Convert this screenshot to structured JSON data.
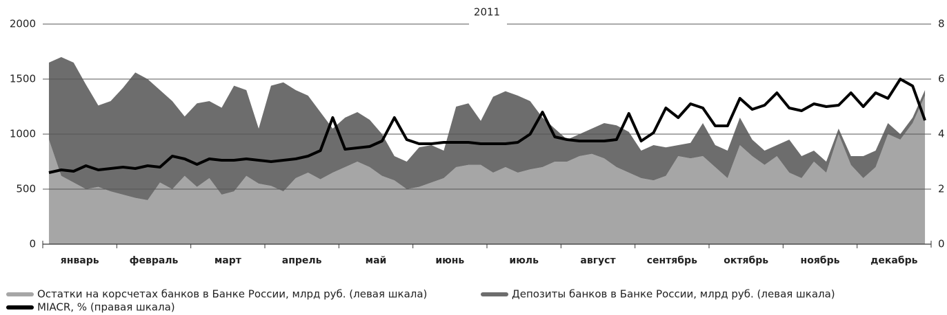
{
  "chart_data": {
    "type": "stacked_area_line",
    "title": "2011",
    "categories": [
      "январь",
      null,
      null,
      null,
      null,
      null,
      "февраль",
      null,
      null,
      null,
      null,
      null,
      "март",
      null,
      null,
      null,
      null,
      null,
      "апрель",
      null,
      null,
      null,
      null,
      null,
      "май",
      null,
      null,
      null,
      null,
      null,
      "июнь",
      null,
      null,
      null,
      null,
      null,
      "июль",
      null,
      null,
      null,
      null,
      null,
      "август",
      null,
      null,
      null,
      null,
      null,
      "сентябрь",
      null,
      null,
      null,
      null,
      null,
      "октябрь",
      null,
      null,
      null,
      null,
      null,
      "ноябрь",
      null,
      null,
      null,
      null,
      null,
      "декабрь",
      null,
      null,
      null,
      null,
      null
    ],
    "series": [
      {
        "name": "Остатки на корсчетах банков в Банке России, млрд руб. (левая шкала)",
        "color": "#a6a6a6",
        "type": "area",
        "values": [
          950,
          620,
          560,
          500,
          520,
          480,
          450,
          420,
          400,
          560,
          500,
          620,
          520,
          600,
          450,
          480,
          620,
          550,
          530,
          480,
          600,
          650,
          590,
          650,
          700,
          750,
          700,
          620,
          580,
          500,
          520,
          560,
          600,
          700,
          720,
          720,
          650,
          700,
          650,
          680,
          700,
          750,
          750,
          800,
          820,
          780,
          700,
          650,
          600,
          580,
          620,
          800,
          780,
          800,
          700,
          600,
          900,
          800,
          720,
          800,
          650,
          600,
          750,
          650,
          1000,
          720,
          600,
          700,
          1000,
          950,
          1100,
          1350
        ]
      },
      {
        "name": "Депозиты банков в Банке России, млрд руб. (левая шкала)",
        "color": "#6d6d6d",
        "type": "area",
        "values": [
          700,
          1080,
          1090,
          950,
          740,
          820,
          970,
          1140,
          1100,
          840,
          800,
          540,
          760,
          700,
          790,
          960,
          780,
          500,
          910,
          990,
          800,
          700,
          610,
          400,
          450,
          450,
          430,
          380,
          220,
          250,
          360,
          340,
          250,
          550,
          560,
          400,
          690,
          690,
          700,
          620,
          450,
          300,
          200,
          200,
          230,
          320,
          380,
          370,
          250,
          320,
          260,
          100,
          140,
          300,
          200,
          250,
          250,
          150,
          130,
          100,
          300,
          200,
          100,
          100,
          50,
          80,
          200,
          150,
          100,
          50,
          50,
          50
        ]
      },
      {
        "name": "MIACR, % (правая шкала)",
        "color": "#000000",
        "type": "line",
        "axis": "y2",
        "values": [
          2.6,
          2.7,
          2.65,
          2.85,
          2.7,
          2.75,
          2.8,
          2.75,
          2.85,
          2.8,
          3.2,
          3.1,
          2.9,
          3.1,
          3.05,
          3.05,
          3.1,
          3.05,
          3.0,
          3.05,
          3.1,
          3.2,
          3.4,
          4.6,
          3.45,
          3.5,
          3.55,
          3.75,
          4.6,
          3.8,
          3.65,
          3.65,
          3.7,
          3.7,
          3.7,
          3.65,
          3.65,
          3.65,
          3.7,
          4.0,
          4.8,
          3.9,
          3.8,
          3.75,
          3.75,
          3.75,
          3.8,
          4.75,
          3.75,
          4.05,
          4.95,
          4.6,
          5.1,
          4.95,
          4.3,
          4.3,
          5.3,
          4.9,
          5.05,
          5.5,
          4.95,
          4.85,
          5.1,
          5.0,
          5.05,
          5.5,
          5.0,
          5.5,
          5.3,
          6.0,
          5.75,
          4.5
        ]
      }
    ],
    "ylim": [
      0,
      2000
    ],
    "yticks": [
      0,
      500,
      1000,
      1500,
      2000
    ],
    "y2lim": [
      0,
      8
    ],
    "y2ticks": [
      0,
      2,
      4,
      6,
      8
    ],
    "grid": true,
    "legend": "bottom"
  }
}
